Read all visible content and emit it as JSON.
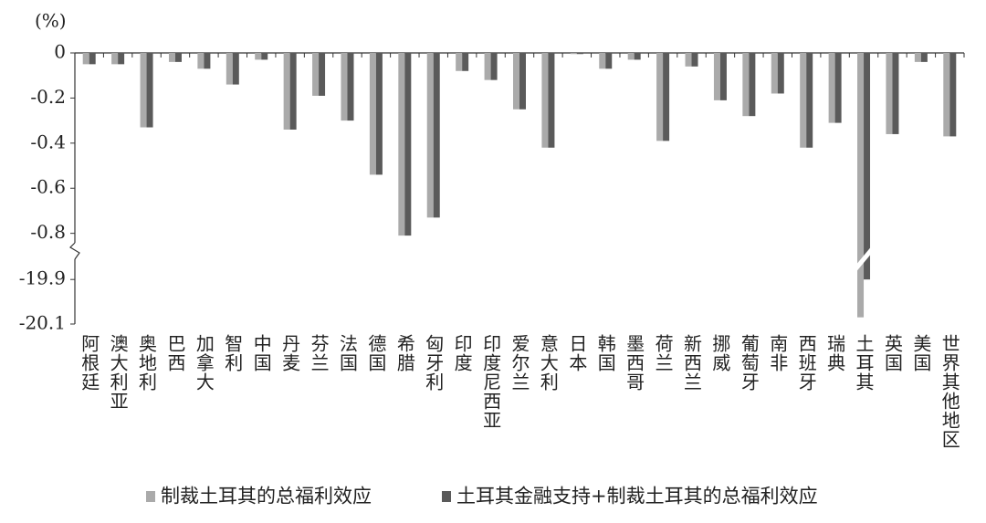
{
  "chart_data": {
    "type": "bar",
    "y_label": "(%)",
    "categories": [
      "阿根廷",
      "澳大利亚",
      "奥地利",
      "巴西",
      "加拿大",
      "智利",
      "中国",
      "丹麦",
      "芬兰",
      "法国",
      "德国",
      "希腊",
      "匈牙利",
      "印度",
      "印度尼西亚",
      "爱尔兰",
      "意大利",
      "日本",
      "韩国",
      "墨西哥",
      "荷兰",
      "新西兰",
      "挪威",
      "葡萄牙",
      "南非",
      "西班牙",
      "瑞典",
      "土耳其",
      "英国",
      "美国",
      "世界其他地区"
    ],
    "series": [
      {
        "name": "制裁土耳其的总福利效应",
        "color": "#aaaaaa",
        "values": [
          -0.05,
          -0.05,
          -0.33,
          -0.04,
          -0.07,
          -0.14,
          -0.03,
          -0.34,
          -0.19,
          -0.3,
          -0.54,
          -0.81,
          -0.73,
          -0.08,
          -0.12,
          -0.25,
          -0.42,
          -0.005,
          -0.07,
          -0.03,
          -0.39,
          -0.06,
          -0.21,
          -0.28,
          -0.18,
          -0.42,
          -0.31,
          -20.07,
          -0.36,
          -0.04,
          -0.37
        ]
      },
      {
        "name": "土耳其金融支持+制裁土耳其的总福利效应",
        "color": "#5a5a5a",
        "values": [
          -0.05,
          -0.05,
          -0.33,
          -0.04,
          -0.07,
          -0.14,
          -0.03,
          -0.34,
          -0.19,
          -0.3,
          -0.54,
          -0.81,
          -0.73,
          -0.08,
          -0.12,
          -0.25,
          -0.42,
          -0.005,
          -0.07,
          -0.03,
          -0.39,
          -0.06,
          -0.21,
          -0.28,
          -0.18,
          -0.42,
          -0.31,
          -19.9,
          -0.36,
          -0.04,
          -0.37
        ]
      }
    ],
    "ylim": [
      -20.1,
      0
    ],
    "y_break": [
      -19.85,
      -0.85
    ],
    "yticks": [
      0,
      -0.2,
      -0.4,
      -0.6,
      -0.8,
      -19.9,
      -20.1
    ],
    "legend": "bottom"
  }
}
